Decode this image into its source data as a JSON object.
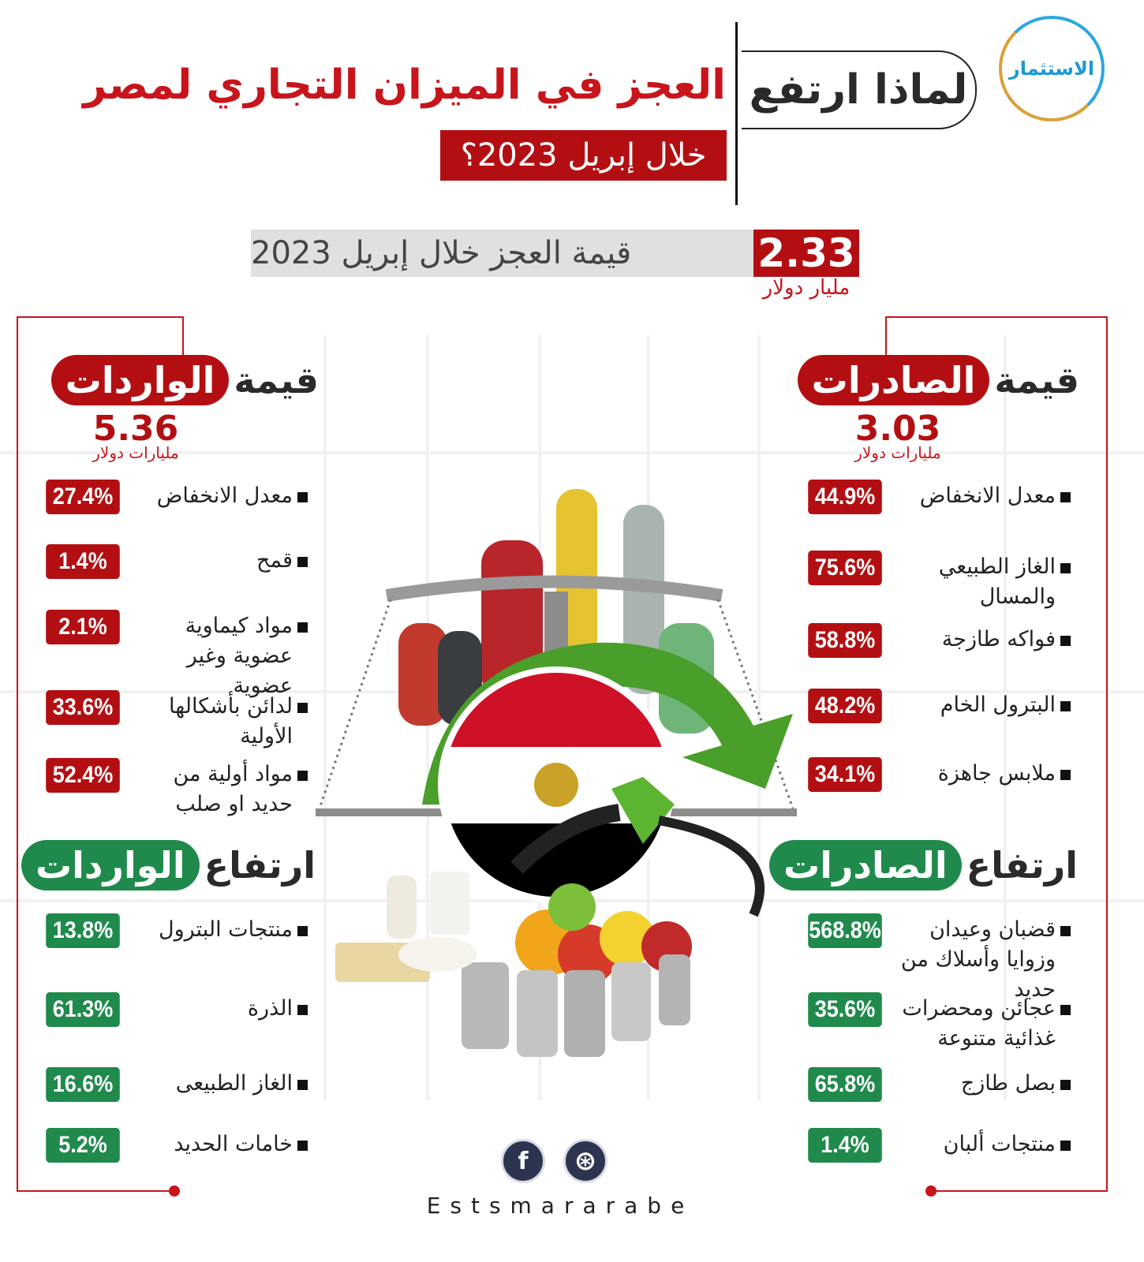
{
  "logo": {
    "text": "الاستثمار"
  },
  "header": {
    "pill_text": "لماذا ارتفع",
    "title": "العجز في الميزان التجاري لمصر",
    "subtitle": "خلال إبريل 2023؟"
  },
  "deficit": {
    "label": "قيمة العجز خلال إبريل 2023",
    "value": "2.33",
    "unit": "مليار دولار"
  },
  "exports": {
    "title_prefix": "قيمة",
    "title_tag": "الصادرات",
    "value": "3.03",
    "unit": "مليارات دولار",
    "decrease": [
      {
        "label": "معدل الانخفاض",
        "value": "44.9%"
      },
      {
        "label": "الغاز الطبيعي والمسال",
        "value": "75.6%"
      },
      {
        "label": "فواكه طازجة",
        "value": "58.8%"
      },
      {
        "label": "البترول الخام",
        "value": "48.2%"
      },
      {
        "label": "ملابس جاهزة",
        "value": "34.1%"
      }
    ],
    "increase_prefix": "ارتفاع",
    "increase_tag": "الصادرات",
    "increase": [
      {
        "label": "قضبان وعيدان وزوايا وأسلاك من حديد",
        "value": "568.8%"
      },
      {
        "label": "عجائن ومحضرات غذائية متنوعة",
        "value": "35.6%"
      },
      {
        "label": "بصل طازج",
        "value": "65.8%"
      },
      {
        "label": "منتجات ألبان",
        "value": "1.4%"
      }
    ]
  },
  "imports": {
    "title_prefix": "قيمة",
    "title_tag": "الواردات",
    "value": "5.36",
    "unit": "مليارات دولار",
    "decrease": [
      {
        "label": "معدل الانخفاض",
        "value": "27.4%"
      },
      {
        "label": "قمح",
        "value": "1.4%"
      },
      {
        "label": "مواد كيماوية عضوية وغير عضوية",
        "value": "2.1%"
      },
      {
        "label": "لدائن بأشكالها الأولية",
        "value": "33.6%"
      },
      {
        "label": "مواد أولية من حديد او صلب",
        "value": "52.4%"
      }
    ],
    "increase_prefix": "ارتفاع",
    "increase_tag": "الواردات",
    "increase": [
      {
        "label": "منتجات البترول",
        "value": "13.8%"
      },
      {
        "label": "الذرة",
        "value": "61.3%"
      },
      {
        "label": "الغاز الطبيعى",
        "value": "16.6%"
      },
      {
        "label": "خامات الحديد",
        "value": "5.2%"
      }
    ]
  },
  "footer": {
    "facebook_icon": "f",
    "dribbble_icon": "⊛",
    "brand": "Estsmararabe"
  },
  "colors": {
    "red": "#b30f12",
    "green": "#1f8a4c",
    "flag_red": "#ce1126",
    "flag_black": "#000000"
  }
}
